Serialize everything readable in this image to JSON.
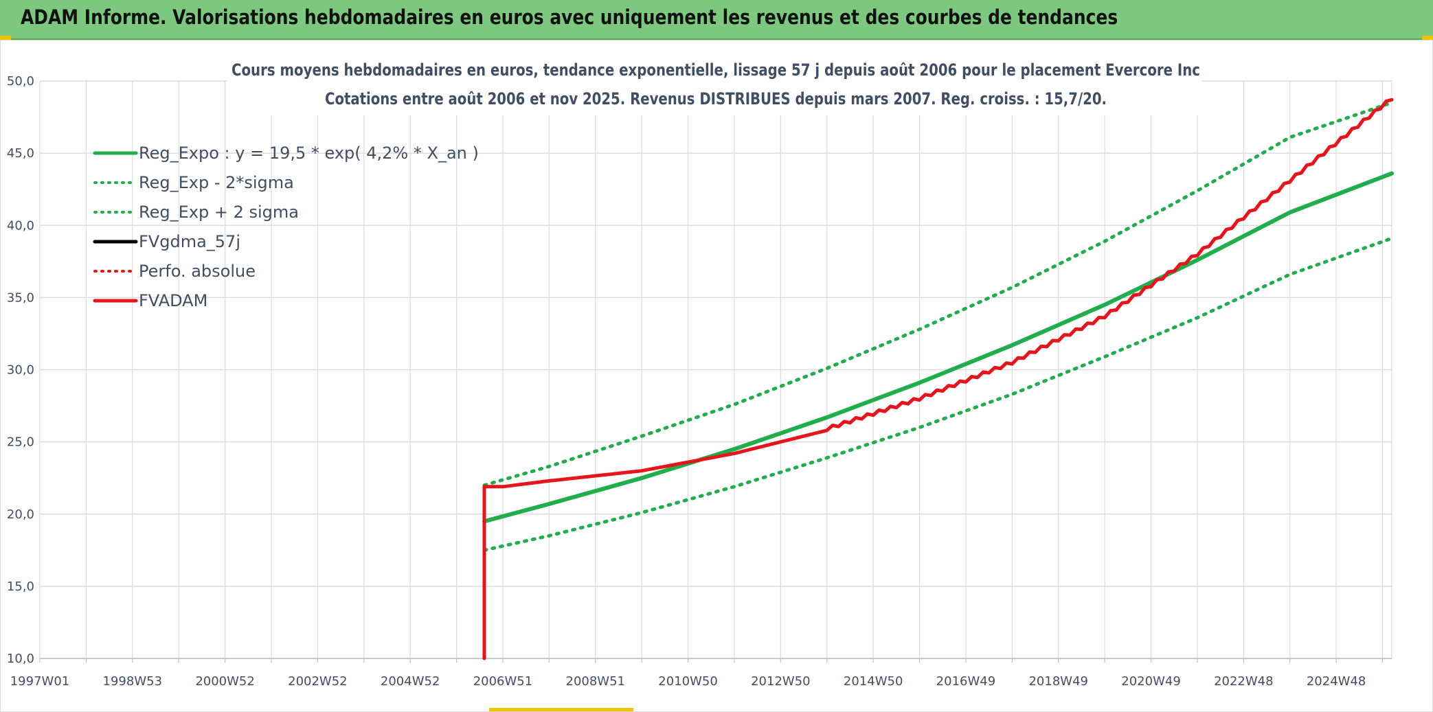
{
  "banner": {
    "title": "ADAM Informe. Valorisations hebdomadaires en euros avec uniquement les revenus et des courbes de tendances"
  },
  "colors": {
    "banner_bg": "#7cc87f",
    "reg_green": "#1fae4b",
    "fvadam_red": "#e8141b",
    "black": "#000000",
    "grid": "#dcdcdc",
    "text": "#404e63"
  },
  "chart_data": {
    "type": "line",
    "title_lines": [
      "Cours moyens hebdomadaires en euros, tendance exponentielle, lissage 57 j depuis août 2006 pour le placement Evercore Inc",
      "Cotations entre août 2006 et nov 2025. Revenus DISTRIBUES depuis mars 2007. Reg. croiss. : 15,7/20."
    ],
    "x_tick_labels": [
      "1997W01",
      "1998W53",
      "2000W52",
      "2002W52",
      "2004W52",
      "2006W51",
      "2008W51",
      "2010W50",
      "2012W50",
      "2014W50",
      "2016W49",
      "2018W49",
      "2020W49",
      "2022W48",
      "2024W48"
    ],
    "x_range_years": [
      1997.0,
      2026.2
    ],
    "y_tick_labels": [
      "10,0",
      "15,0",
      "20,0",
      "25,0",
      "30,0",
      "35,0",
      "40,0",
      "45,0",
      "50,0"
    ],
    "ylim": [
      10,
      50
    ],
    "grid": true,
    "legend_position": "top-left",
    "legend": [
      {
        "label": "Reg_Expo : y = 19,5 * exp( 4,2% *  X_an )",
        "color": "#1fae4b",
        "style": "solid"
      },
      {
        "label": "Reg_Exp - 2*sigma",
        "color": "#1fae4b",
        "style": "dotted"
      },
      {
        "label": "Reg_Exp + 2 sigma",
        "color": "#1fae4b",
        "style": "dotted"
      },
      {
        "label": "FVgdma_57j",
        "color": "#000000",
        "style": "solid"
      },
      {
        "label": "Perfo. absolue",
        "color": "#e8141b",
        "style": "dotted"
      },
      {
        "label": "FVADAM",
        "color": "#e8141b",
        "style": "solid"
      }
    ],
    "series": [
      {
        "name": "Reg_Expo : y = 19,5 * exp( 4,2% *  X_an )",
        "x": [
          2006.6,
          2008,
          2010,
          2012,
          2014,
          2016,
          2018,
          2020,
          2022,
          2024,
          2026.2
        ],
        "y": [
          19.5,
          20.7,
          22.5,
          24.5,
          26.7,
          29.1,
          31.7,
          34.5,
          37.6,
          40.9,
          43.6
        ]
      },
      {
        "name": "Reg_Exp - 2*sigma",
        "x": [
          2006.6,
          2008,
          2010,
          2012,
          2014,
          2016,
          2018,
          2020,
          2022,
          2024,
          2026.2
        ],
        "y": [
          17.5,
          18.5,
          20.1,
          21.9,
          23.9,
          26.0,
          28.3,
          30.9,
          33.6,
          36.6,
          39.1
        ]
      },
      {
        "name": "Reg_Exp + 2 sigma",
        "x": [
          2006.6,
          2008,
          2010,
          2012,
          2014,
          2016,
          2018,
          2020,
          2022,
          2024,
          2026.2
        ],
        "y": [
          22.0,
          23.3,
          25.4,
          27.6,
          30.1,
          32.8,
          35.7,
          38.9,
          42.4,
          46.1,
          48.5
        ]
      },
      {
        "name": "FVADAM",
        "x": [
          2006.6,
          2006.6,
          2007.0,
          2008,
          2010,
          2012,
          2014,
          2016,
          2018,
          2020,
          2022,
          2024,
          2026.2
        ],
        "y": [
          10.0,
          21.9,
          21.9,
          22.3,
          23.0,
          24.2,
          25.8,
          27.9,
          30.4,
          33.6,
          37.9,
          43.0,
          48.7
        ]
      }
    ]
  }
}
